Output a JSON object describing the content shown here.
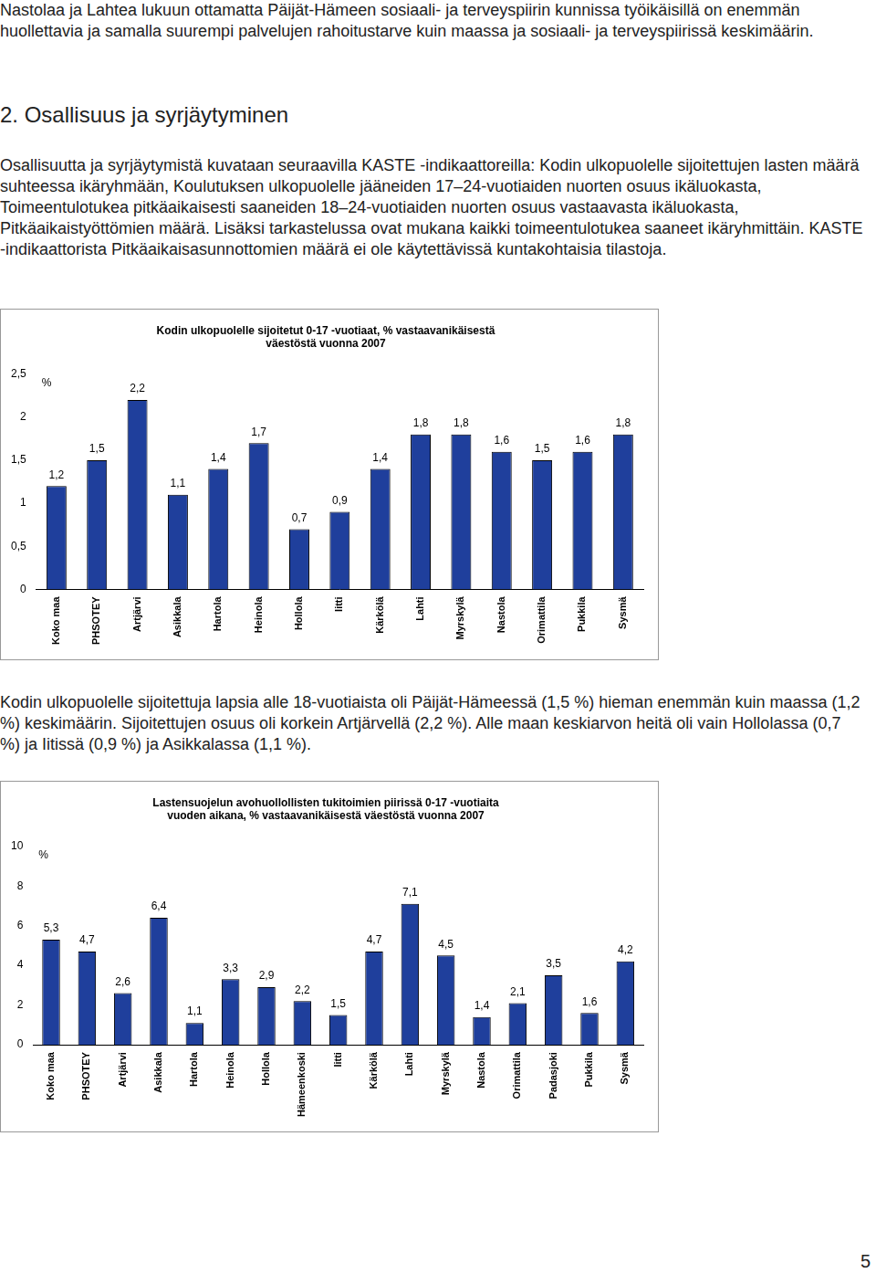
{
  "page": {
    "paragraphs_top": [
      "Nastolaa ja Lahtea lukuun ottamatta Päijät-Hämeen sosiaali- ja terveyspiirin kunnissa työikäisillä on enemmän huollettavia ja samalla suurempi palvelujen rahoitustarve kuin maassa ja sosiaali- ja terveyspiirissä keskimäärin."
    ],
    "heading": "2. Osallisuus ja syrjäytyminen",
    "intro": "Osallisuutta ja syrjäytymistä kuvataan seuraavilla KASTE -indikaattoreilla: Kodin ulkopuolelle sijoitettujen lasten määrä suhteessa ikäryhmään, Koulutuksen ulkopuolelle jääneiden 17–24-vuotiaiden nuorten osuus ikäluokasta, Toimeentulotukea pitkäaikaisesti saaneiden 18–24-vuotiaiden nuorten osuus vastaavasta ikäluokasta, Pitkäaikaistyöttömien määrä. Lisäksi tarkastelussa ovat mukana kaikki toimeentulotukea saaneet ikäryhmittäin. KASTE -indikaattorista Pitkäaikaisasunnottomien määrä ei ole käytettävissä kuntakohtaisia tilastoja.",
    "between_charts": "Kodin ulkopuolelle sijoitettuja lapsia alle 18-vuotiaista oli Päijät-Hämeessä (1,5 %) hieman enemmän kuin maassa (1,2 %) keskimäärin. Sijoitettujen osuus oli korkein Artjärvellä (2,2 %). Alle maan keskiarvon heitä oli vain Hollolassa (0,7 %) ja Iitissä (0,9 %) ja Asikkalassa (1,1 %).",
    "page_number": "5"
  },
  "chart_data": [
    {
      "type": "bar",
      "title": "Kodin ulkopuolelle sijoitetut 0-17 -vuotiaat, % vastaavanikäisestä väestöstä vuonna 2007",
      "y_label": "%",
      "categories": [
        "Koko maa",
        "PHSOTEY",
        "Artjärvi",
        "Asikkala",
        "Hartola",
        "Heinola",
        "Hollola",
        "Iitti",
        "Kärkölä",
        "Lahti",
        "Myrskylä",
        "Nastola",
        "Orimattila",
        "Pukkila",
        "Sysmä"
      ],
      "values": [
        1.2,
        1.5,
        2.2,
        1.1,
        1.4,
        1.7,
        0.7,
        0.9,
        1.4,
        1.8,
        1.8,
        1.6,
        1.5,
        1.6,
        1.8
      ],
      "value_labels": [
        "1,2",
        "1,5",
        "2,2",
        "1,1",
        "1,4",
        "1,7",
        "0,7",
        "0,9",
        "1,4",
        "1,8",
        "1,8",
        "1,6",
        "1,5",
        "1,6",
        "1,8"
      ],
      "data_labels": true,
      "color": "#1f3f9c",
      "ylim": [
        0,
        2.5
      ],
      "yticks": [
        0,
        {
          "value": 0.5,
          "label": "0,5"
        },
        1,
        {
          "value": 1.5,
          "label": "1,5"
        },
        2,
        {
          "value": 2.5,
          "label": "2,5"
        }
      ],
      "grid": false
    },
    {
      "type": "bar",
      "title": "Lastensuojelun avohuollollisten tukitoimien piirissä 0-17 -vuotiaita vuoden aikana, % vastaavanikäisestä väestöstä vuonna 2007",
      "y_label": "%",
      "categories": [
        "Koko maa",
        "PHSOTEY",
        "Artjärvi",
        "Asikkala",
        "Hartola",
        "Heinola",
        "Hollola",
        "Hämeenkoski",
        "Iitti",
        "Kärkölä",
        "Lahti",
        "Myrskylä",
        "Nastola",
        "Orimattila",
        "Padasjoki",
        "Pukkila",
        "Sysmä"
      ],
      "values": [
        5.3,
        4.7,
        2.6,
        6.4,
        1.1,
        3.3,
        2.9,
        2.2,
        1.5,
        4.7,
        7.1,
        4.5,
        1.4,
        2.1,
        3.5,
        1.6,
        4.2
      ],
      "value_labels": [
        "5,3",
        "4,7",
        "2,6",
        "6,4",
        "1,1",
        "3,3",
        "2,9",
        "2,2",
        "1,5",
        "4,7",
        "7,1",
        "4,5",
        "1,4",
        "2,1",
        "3,5",
        "1,6",
        "4,2"
      ],
      "data_labels": true,
      "color": "#1f3f9c",
      "ylim": [
        0,
        10
      ],
      "yticks": [
        0,
        2,
        4,
        6,
        8,
        10
      ],
      "grid": false
    }
  ]
}
